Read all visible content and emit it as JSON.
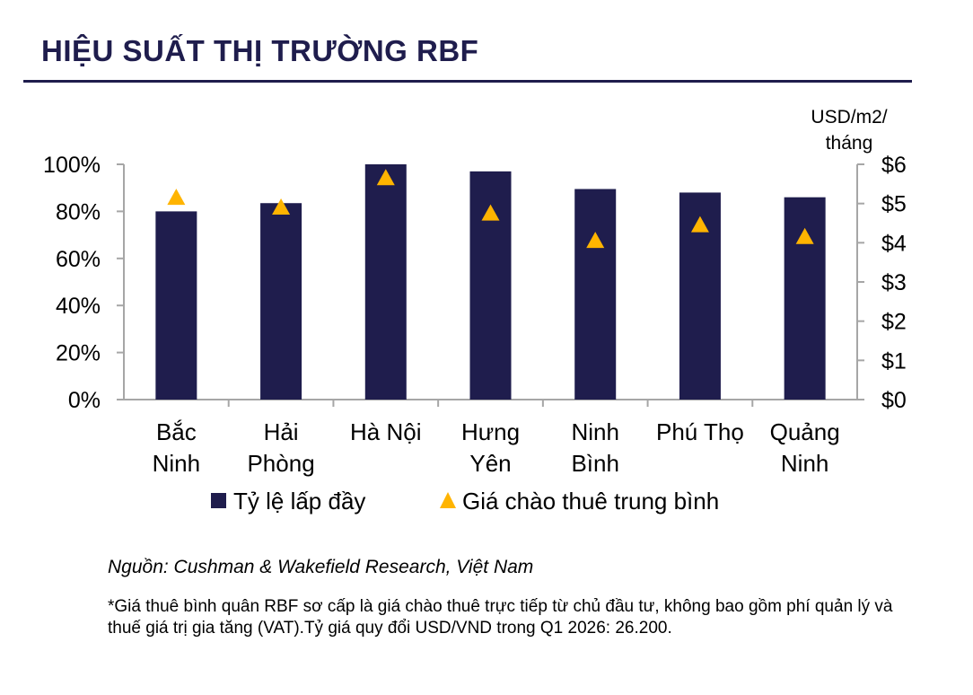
{
  "header": {
    "title": "HIỆU SUẤT THỊ TRƯỜNG RBF"
  },
  "chart_data": {
    "type": "bar",
    "categories": [
      [
        "Bắc",
        "Ninh"
      ],
      [
        "Hải",
        "Phòng"
      ],
      [
        "Hà Nội"
      ],
      [
        "Hưng",
        "Yên"
      ],
      [
        "Ninh",
        "Bình"
      ],
      [
        "Phú Thọ"
      ],
      [
        "Quảng",
        "Ninh"
      ]
    ],
    "series": [
      {
        "name": "Tỷ lệ lấp đầy",
        "kind": "bar",
        "axis": "left",
        "color": "#1f1d4d",
        "values": [
          80,
          83.5,
          100,
          97,
          89.5,
          88,
          86
        ]
      },
      {
        "name": "Giá chào thuê trung bình",
        "kind": "marker-triangle",
        "axis": "right",
        "color": "#ffb400",
        "values": [
          5.15,
          4.9,
          5.65,
          4.75,
          4.05,
          4.45,
          4.15
        ]
      }
    ],
    "y_left": {
      "ylim": [
        0,
        100
      ],
      "ticks": [
        0,
        20,
        40,
        60,
        80,
        100
      ],
      "tick_labels": [
        "0%",
        "20%",
        "40%",
        "60%",
        "80%",
        "100%"
      ]
    },
    "y_right": {
      "ylim": [
        0,
        6
      ],
      "ticks": [
        0,
        1,
        2,
        3,
        4,
        5,
        6
      ],
      "tick_labels": [
        "$0",
        "$1",
        "$2",
        "$3",
        "$4",
        "$5",
        "$6"
      ],
      "unit_label": [
        "USD/m2/",
        "tháng"
      ]
    },
    "grid": false,
    "legend_position": "bottom"
  },
  "footer": {
    "source": "Nguồn: Cushman & Wakefield Research, Việt Nam",
    "note": "*Giá thuê bình quân RBF sơ cấp là giá chào thuê trực tiếp từ chủ đầu tư, không bao gồm phí quản lý và thuế giá trị gia tăng (VAT).Tỷ giá quy đổi USD/VND trong Q1 2026: 26.200."
  }
}
